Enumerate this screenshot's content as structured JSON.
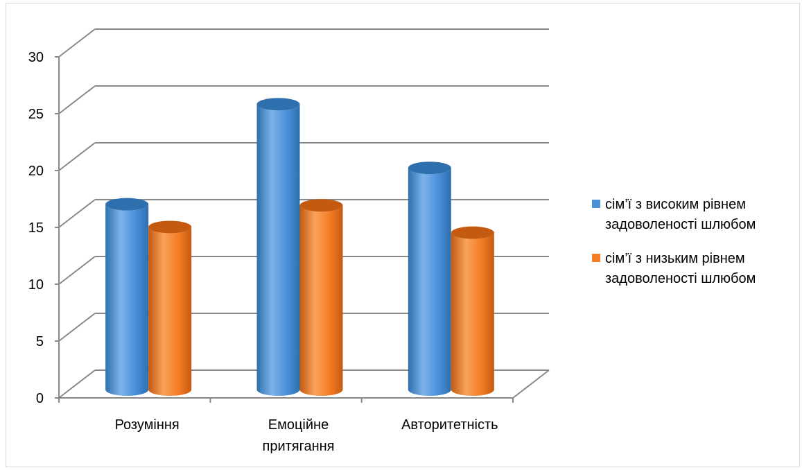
{
  "chart_data": {
    "type": "bar",
    "categories": [
      "Розуміння",
      "Емоційне притягання",
      "Авторитетність"
    ],
    "category_lines": [
      [
        "Розуміння"
      ],
      [
        "Емоційне",
        "притягання"
      ],
      [
        "Авторитетність"
      ]
    ],
    "series": [
      {
        "name": "сім’ї з високим рівнем задоволеності шлюбом",
        "legend_lines": [
          "сім’ї з високим рівнем",
          "задоволеності шлюбом"
        ],
        "values": [
          16.3,
          25.1,
          19.5
        ],
        "color": "#4a90d9",
        "color_dark": "#2e6fae",
        "color_light": "#7db3ea"
      },
      {
        "name": "сім’ї з низьким рівнем задоволеності шлюбом",
        "legend_lines": [
          "сім’ї з низьким рівнем",
          "задоволеності шлюбом"
        ],
        "values": [
          14.3,
          16.2,
          13.8
        ],
        "color": "#f47c24",
        "color_dark": "#c45a10",
        "color_light": "#f9a25a"
      }
    ],
    "y_ticks": [
      "0",
      "5",
      "10",
      "15",
      "20",
      "25",
      "30"
    ],
    "ylim": [
      0,
      30
    ],
    "grid": true,
    "legend_position": "right",
    "style": "3d-cylinder"
  }
}
